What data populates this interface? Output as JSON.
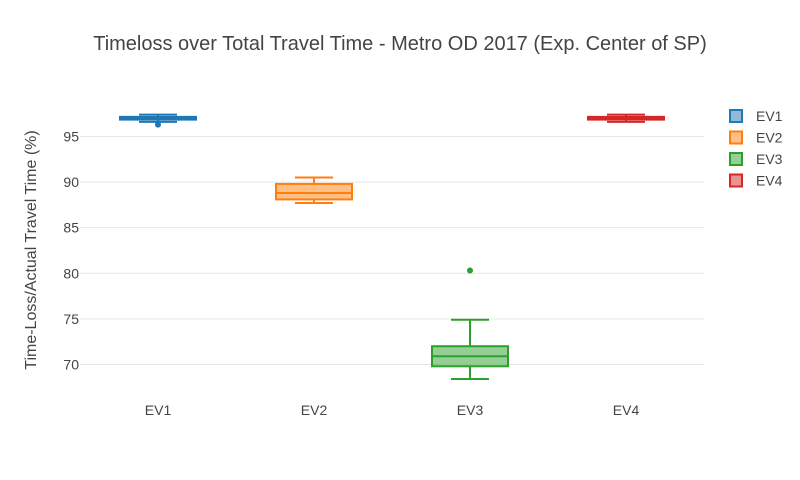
{
  "chart_data": {
    "type": "box",
    "title": "Timeloss over Total Travel Time - Metro OD 2017 (Exp. Center of SP)",
    "xlabel": "",
    "ylabel": "Time-Loss/Actual Travel Time (%)",
    "ylim": [
      67.2,
      99.0
    ],
    "yticks": [
      70,
      75,
      80,
      85,
      90,
      95
    ],
    "grid": true,
    "legend_position": "top-right",
    "series": [
      {
        "name": "EV1",
        "color": "#1f77b4",
        "min": 96.6,
        "q1": 96.85,
        "median": 97.0,
        "q3": 97.15,
        "max": 97.4,
        "outliers": [
          96.3
        ]
      },
      {
        "name": "EV2",
        "color": "#ff7f0e",
        "min": 87.7,
        "q1": 88.1,
        "median": 88.8,
        "q3": 89.8,
        "max": 90.5,
        "outliers": []
      },
      {
        "name": "EV3",
        "color": "#2ca02c",
        "min": 68.4,
        "q1": 69.8,
        "median": 70.9,
        "q3": 72.0,
        "max": 74.9,
        "outliers": [
          80.3
        ]
      },
      {
        "name": "EV4",
        "color": "#d62728",
        "min": 96.6,
        "q1": 96.85,
        "median": 97.0,
        "q3": 97.15,
        "max": 97.4,
        "outliers": []
      }
    ]
  }
}
